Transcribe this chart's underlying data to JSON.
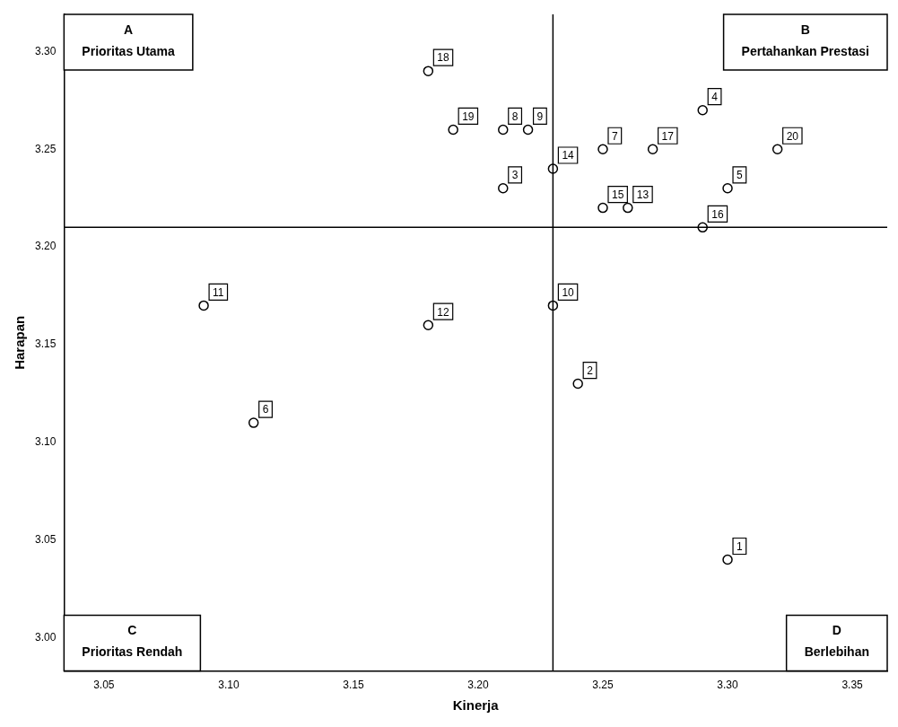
{
  "chart_data": {
    "type": "scatter",
    "xlabel": "Kinerja",
    "ylabel": "Harapan",
    "x": [
      3.3,
      3.24,
      3.21,
      3.29,
      3.3,
      3.11,
      3.25,
      3.21,
      3.22,
      3.23,
      3.09,
      3.18,
      3.26,
      3.23,
      3.25,
      3.29,
      3.27,
      3.18,
      3.19,
      3.32
    ],
    "series": [
      {
        "color": "#000000",
        "values": [
          3.04,
          3.13,
          3.23,
          3.27,
          3.23,
          3.11,
          3.25,
          3.26,
          3.26,
          3.17,
          3.17,
          3.16,
          3.22,
          3.24,
          3.22,
          3.21,
          3.25,
          3.29,
          3.26,
          3.25
        ]
      }
    ],
    "marker": "circle",
    "legend": false,
    "grid": false,
    "xlim": [
      3.034,
      3.364
    ],
    "ylim": [
      2.983,
      3.319
    ],
    "xticks": [
      3.05,
      {
        "value": 3.1,
        "label": "3.10"
      },
      3.15,
      {
        "value": 3.2,
        "label": "3.20"
      },
      3.25,
      {
        "value": 3.3,
        "label": "3.30"
      },
      3.35
    ],
    "yticks": [
      {
        "value": 3.0,
        "label": "3.00"
      },
      3.05,
      {
        "value": 3.1,
        "label": "3.10"
      },
      3.15,
      {
        "value": 3.2,
        "label": "3.20"
      },
      3.25,
      {
        "value": 3.3,
        "label": "3.30"
      }
    ],
    "ref_lines": [
      {
        "axis": "x",
        "value": 3.23,
        "color": "#000000"
      },
      {
        "axis": "y",
        "value": 3.21,
        "color": "#000000"
      }
    ],
    "annotations": [
      "A\nPrioritas Utama",
      "B\nPertahankan Prestasi",
      "C\nPrioritas Rendah",
      "D\nBerlebihan",
      {
        "text": "1",
        "x": 3.3,
        "y": 3.04
      },
      {
        "text": "2",
        "x": 3.24,
        "y": 3.13
      },
      {
        "text": "3",
        "x": 3.21,
        "y": 3.23
      },
      {
        "text": "4",
        "x": 3.29,
        "y": 3.27
      },
      {
        "text": "5",
        "x": 3.3,
        "y": 3.23
      },
      {
        "text": "6",
        "x": 3.11,
        "y": 3.11
      },
      {
        "text": "7",
        "x": 3.25,
        "y": 3.25
      },
      {
        "text": "8",
        "x": 3.21,
        "y": 3.26
      },
      {
        "text": "9",
        "x": 3.22,
        "y": 3.26
      },
      {
        "text": "10",
        "x": 3.23,
        "y": 3.17
      },
      {
        "text": "11",
        "x": 3.09,
        "y": 3.17
      },
      {
        "text": "12",
        "x": 3.18,
        "y": 3.16
      },
      {
        "text": "13",
        "x": 3.26,
        "y": 3.22
      },
      {
        "text": "14",
        "x": 3.23,
        "y": 3.24
      },
      {
        "text": "15",
        "x": 3.25,
        "y": 3.22
      },
      {
        "text": "16",
        "x": 3.29,
        "y": 3.21
      },
      {
        "text": "17",
        "x": 3.27,
        "y": 3.25
      },
      {
        "text": "18",
        "x": 3.18,
        "y": 3.29
      },
      {
        "text": "19",
        "x": 3.19,
        "y": 3.26
      },
      {
        "text": "20",
        "x": 3.32,
        "y": 3.25
      }
    ]
  }
}
